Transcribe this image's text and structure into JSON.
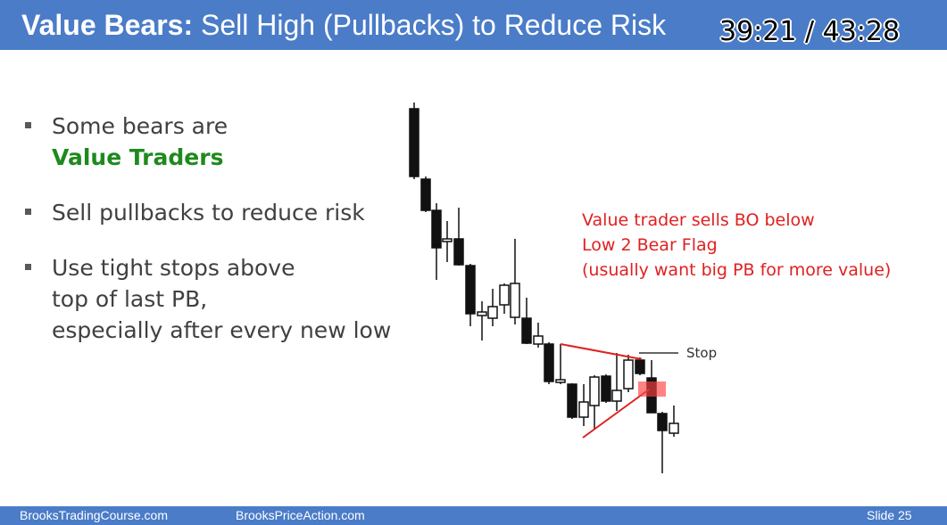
{
  "header": {
    "title_bold": "Value Bears:",
    "title_rest": " Sell High (Pullbacks) to Reduce Risk"
  },
  "video": {
    "timer": "39:21 / 43:28"
  },
  "bullets": [
    {
      "lines": [
        "Some bears are"
      ],
      "highlight": "Value Traders"
    },
    {
      "lines": [
        "Sell pullbacks to reduce risk"
      ]
    },
    {
      "lines": [
        "Use tight stops above",
        "top of last PB,",
        "especially after every new low"
      ]
    }
  ],
  "annotation": {
    "lines": [
      "Value trader sells BO below",
      "Low 2 Bear Flag",
      "(usually want big PB for more value)"
    ],
    "color": "#e02020"
  },
  "stop_label": "Stop",
  "footer": {
    "left": "BrooksTradingCourse.com",
    "middle": "BrooksPriceAction.com",
    "slide": "Slide  25"
  },
  "colors": {
    "header_bg": "#4a7cc8",
    "accent_green": "#1e8a1e",
    "flag_lines": "#e02020"
  }
}
